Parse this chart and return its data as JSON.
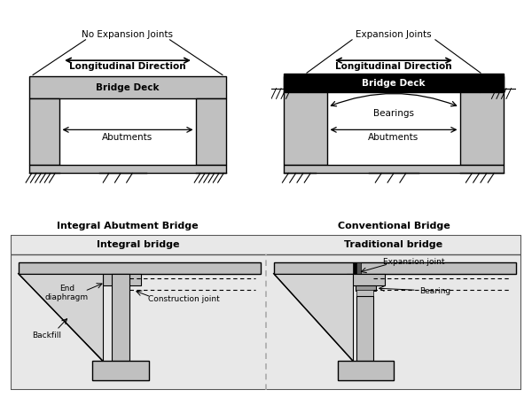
{
  "bg_color": "#ffffff",
  "gray_light": "#c0c0c0",
  "gray_med": "#a0a0a0",
  "panel_bg": "#e8e8e8",
  "black": "#000000",
  "white": "#ffffff",
  "top_title_left": "Integral Abutment Bridge",
  "top_title_right": "Conventional Bridge",
  "bottom_title_left": "Integral bridge",
  "bottom_title_right": "Traditional bridge",
  "label_no_exp": "No Expansion Joints",
  "label_exp": "Expansion Joints",
  "label_long": "Longitudinal Direction",
  "label_bridge_deck": "Bridge Deck",
  "label_bearings": "Bearings",
  "label_abutments": "Abutments",
  "label_end_diaphragm": "End\ndiaphragm",
  "label_construction_joint": "Construction joint",
  "label_backfill": "Backfill",
  "label_expansion_joint": "Expansion joint",
  "label_bearing": "Bearing"
}
